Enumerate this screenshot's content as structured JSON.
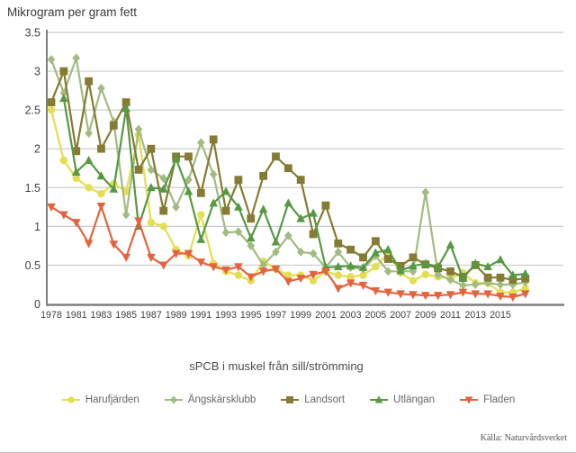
{
  "chart_data": {
    "type": "line",
    "title": "Mikrogram per gram fett",
    "xlabel": "sPCB i muskel från sill/strömming",
    "ylabel": "Mikrogram per gram fett",
    "source": "Källa: Naturvårdsverket",
    "ylim": [
      0,
      3.5
    ],
    "grid": true,
    "legend_position": "bottom",
    "y_ticks": [
      "0",
      "0.5",
      "1",
      "1.5",
      "2",
      "2.5",
      "3",
      "3.5"
    ],
    "x_tick_labels": [
      "1978",
      "1981",
      "1983",
      "1985",
      "1987",
      "1989",
      "1991",
      "1993",
      "1995",
      "1997",
      "1999",
      "2001",
      "2003",
      "2005",
      "2007",
      "2009",
      "2011",
      "2013",
      "2015"
    ],
    "x_tick_indices": [
      0,
      2,
      4,
      6,
      8,
      10,
      12,
      14,
      16,
      18,
      20,
      22,
      24,
      26,
      28,
      30,
      32,
      34,
      36
    ],
    "n_points": 39,
    "colors": {
      "grid": "#cccccc",
      "axis": "#7f7f7f",
      "tick_text": "#404040"
    },
    "series": [
      {
        "name": "Harufjärden",
        "color": "#e4de52",
        "marker": "circle",
        "values": [
          2.5,
          1.85,
          1.62,
          1.5,
          1.42,
          1.55,
          1.45,
          2.18,
          1.05,
          1.0,
          0.7,
          0.62,
          1.15,
          0.52,
          0.42,
          0.37,
          0.3,
          0.55,
          0.45,
          0.37,
          0.37,
          0.3,
          0.42,
          0.37,
          0.35,
          0.37,
          0.48,
          0.65,
          0.4,
          0.3,
          0.38,
          0.35,
          0.33,
          0.4,
          0.27,
          0.27,
          0.15,
          0.15,
          0.2
        ]
      },
      {
        "name": "Ängskärsklubb",
        "color": "#a2bb80",
        "marker": "diamond",
        "values": [
          3.15,
          2.72,
          3.17,
          2.2,
          2.78,
          2.35,
          1.15,
          2.25,
          1.73,
          1.62,
          1.25,
          1.6,
          2.08,
          1.67,
          0.92,
          0.93,
          0.75,
          0.5,
          0.67,
          0.88,
          0.67,
          0.65,
          0.47,
          0.67,
          0.47,
          0.45,
          0.62,
          0.42,
          0.42,
          0.42,
          1.44,
          0.38,
          0.31,
          0.24,
          0.25,
          0.27,
          0.25,
          0.25,
          0.28
        ]
      },
      {
        "name": "Landsort",
        "color": "#857b33",
        "marker": "square",
        "values": [
          2.6,
          3.0,
          1.97,
          2.87,
          2.0,
          2.3,
          2.6,
          1.73,
          2.0,
          1.2,
          1.9,
          1.9,
          1.43,
          2.12,
          1.2,
          1.6,
          1.1,
          1.65,
          1.9,
          1.75,
          1.6,
          0.9,
          1.27,
          0.78,
          0.7,
          0.6,
          0.81,
          0.58,
          0.49,
          0.6,
          0.51,
          0.46,
          0.42,
          0.35,
          0.5,
          0.34,
          0.34,
          0.31,
          0.33
        ]
      },
      {
        "name": "Utlängan",
        "color": "#569942",
        "marker": "triangle-up",
        "values": [
          null,
          2.65,
          1.7,
          1.85,
          1.65,
          1.48,
          2.52,
          1.0,
          1.5,
          1.48,
          1.87,
          1.45,
          0.83,
          1.3,
          1.45,
          1.25,
          0.85,
          1.22,
          0.8,
          1.3,
          1.1,
          1.17,
          0.47,
          0.48,
          0.49,
          0.47,
          0.66,
          0.7,
          0.43,
          0.49,
          0.52,
          0.48,
          0.76,
          0.33,
          0.52,
          0.48,
          0.57,
          0.37,
          0.39
        ]
      },
      {
        "name": "Fladen",
        "color": "#e5633c",
        "marker": "triangle-down",
        "values": [
          1.25,
          1.15,
          1.05,
          0.78,
          1.26,
          0.77,
          0.6,
          1.07,
          0.6,
          0.5,
          0.65,
          0.65,
          0.54,
          0.48,
          0.44,
          0.48,
          0.35,
          0.42,
          0.45,
          0.29,
          0.33,
          0.38,
          0.42,
          0.2,
          0.27,
          0.24,
          0.17,
          0.15,
          0.13,
          0.12,
          0.11,
          0.11,
          0.12,
          0.15,
          0.13,
          0.13,
          0.1,
          0.09,
          0.13
        ]
      }
    ]
  }
}
